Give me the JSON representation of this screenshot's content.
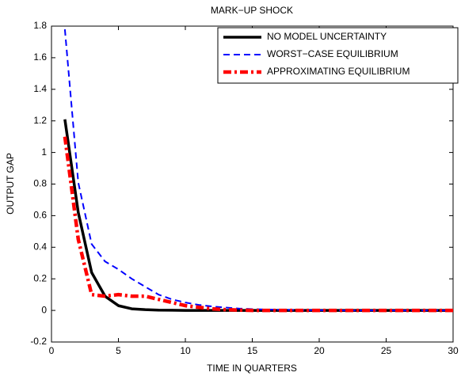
{
  "chart_data": {
    "type": "line",
    "title": "MARK−UP  SHOCK",
    "x_label": "TIME IN QUARTERS",
    "y_label": "OUTPUT  GAP",
    "x": [
      1,
      2,
      3,
      4,
      5,
      6,
      7,
      8,
      9,
      10,
      11,
      12,
      13,
      14,
      15,
      16,
      17,
      18,
      19,
      20,
      21,
      22,
      23,
      24,
      25,
      26,
      27,
      28,
      29,
      30
    ],
    "series": [
      {
        "name": "NO MODEL UNCERTAINTY",
        "color": "#000000",
        "style": "solid",
        "values": [
          1.21,
          0.62,
          0.24,
          0.09,
          0.03,
          0.01,
          0.005,
          0.002,
          0.001,
          0,
          0,
          0,
          0,
          0,
          0,
          0,
          0,
          0,
          0,
          0,
          0,
          0,
          0,
          0,
          0,
          0,
          0,
          0,
          0,
          0
        ]
      },
      {
        "name": "WORST−CASE EQUILIBRIUM",
        "color": "#0000ff",
        "style": "dashed",
        "values": [
          1.78,
          0.81,
          0.42,
          0.31,
          0.26,
          0.2,
          0.15,
          0.1,
          0.07,
          0.05,
          0.035,
          0.025,
          0.018,
          0.012,
          0.008,
          0.006,
          0.004,
          0.003,
          0.002,
          0.001,
          0.001,
          0,
          0,
          0,
          0,
          0,
          0,
          0,
          0,
          0
        ]
      },
      {
        "name": "APPROXIMATING EQUILIBRIUM",
        "color": "#ff0000",
        "style": "dashdot",
        "values": [
          1.1,
          0.45,
          0.1,
          0.09,
          0.1,
          0.09,
          0.09,
          0.07,
          0.05,
          0.03,
          0.02,
          0.01,
          0.005,
          0.002,
          0,
          0,
          0,
          0,
          0,
          0,
          0,
          0,
          0,
          0,
          0,
          0,
          0,
          0,
          0,
          0
        ]
      }
    ],
    "xlim": [
      0,
      30
    ],
    "xticks": [
      0,
      5,
      10,
      15,
      20,
      25,
      30
    ],
    "ylim": [
      -0.2,
      1.8
    ],
    "yticks": [
      -0.2,
      0,
      0.2,
      0.4,
      0.6,
      0.8,
      1,
      1.2,
      1.4,
      1.6,
      1.8
    ],
    "legend": "upper right",
    "grid": false
  }
}
